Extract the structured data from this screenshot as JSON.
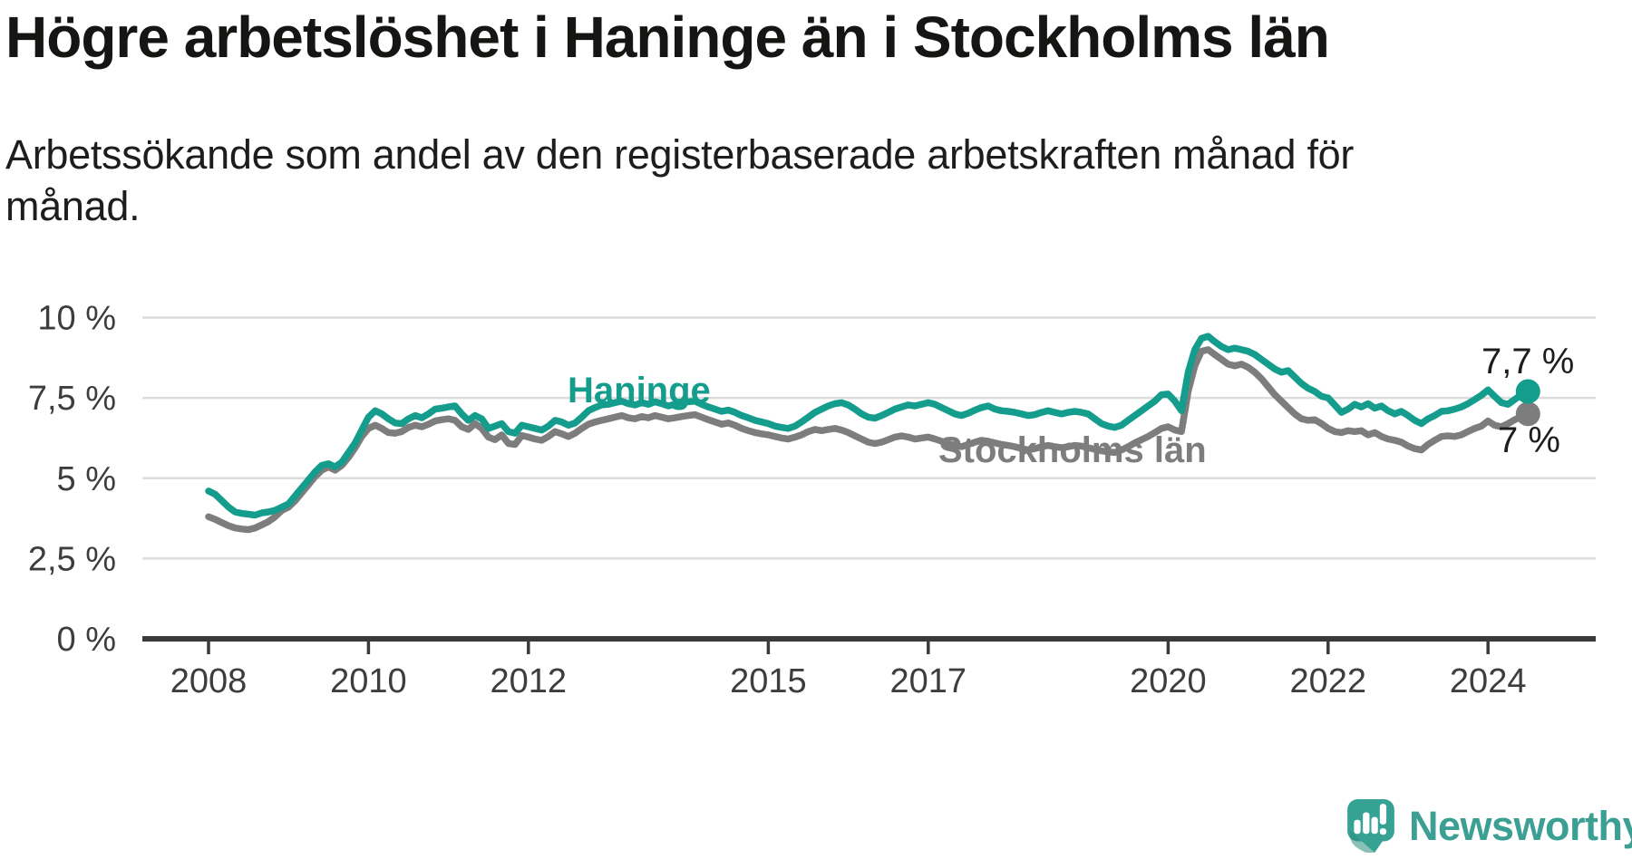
{
  "header": {
    "title": "Högre arbetslöshet i Haninge än i Stockholms län",
    "subtitle": "Arbetssökande som andel av den registerbaserade arbetskraften månad för månad."
  },
  "footer": {
    "brand": "Newsworthy",
    "logo_icon": "speech-bubble-bar-chart-icon"
  },
  "colors": {
    "haninge": "#149c8c",
    "stockholm": "#7d7d7d",
    "grid": "#dcdcdc",
    "axis": "#3a3a3a",
    "tick_label": "#3d3d3d",
    "annotation_text": "#1d1d1b",
    "title_text": "#151513",
    "brand_teal": "#3ba093"
  },
  "chart_data": {
    "type": "line",
    "title": "Högre arbetslöshet i Haninge än i Stockholms län",
    "subtitle": "Arbetssökande som andel av den registerbaserade arbetskraften månad för månad.",
    "unit": "%",
    "frequency": "monthly",
    "x_start": "2008-01",
    "x_end": "2024-07",
    "ylim": [
      0,
      10.5
    ],
    "grid": true,
    "ytick_values": [
      0,
      2.5,
      5,
      7.5,
      10
    ],
    "ytick_labels": [
      "0 %",
      "2,5 %",
      "5 %",
      "7,5 %",
      "10 %"
    ],
    "xtick_years": [
      2008,
      2010,
      2012,
      2015,
      2017,
      2020,
      2022,
      2024
    ],
    "xtick_labels": [
      "2008",
      "2010",
      "2012",
      "2015",
      "2017",
      "2020",
      "2022",
      "2024"
    ],
    "series": [
      {
        "key": "stockholm",
        "name": "Stockholms län",
        "color_key": "stockholm",
        "end_label": "7 %",
        "end_value": 7.0,
        "values": [
          3.8,
          3.72,
          3.62,
          3.52,
          3.45,
          3.42,
          3.4,
          3.45,
          3.55,
          3.65,
          3.8,
          4.0,
          4.1,
          4.3,
          4.55,
          4.8,
          5.05,
          5.25,
          5.35,
          5.25,
          5.4,
          5.65,
          5.95,
          6.3,
          6.55,
          6.65,
          6.55,
          6.42,
          6.4,
          6.45,
          6.58,
          6.65,
          6.6,
          6.68,
          6.78,
          6.82,
          6.85,
          6.8,
          6.6,
          6.52,
          6.7,
          6.55,
          6.28,
          6.2,
          6.35,
          6.08,
          6.05,
          6.33,
          6.28,
          6.22,
          6.18,
          6.3,
          6.45,
          6.38,
          6.3,
          6.4,
          6.55,
          6.68,
          6.75,
          6.8,
          6.85,
          6.9,
          6.95,
          6.88,
          6.85,
          6.92,
          6.88,
          6.95,
          6.9,
          6.85,
          6.88,
          6.92,
          6.95,
          6.98,
          6.9,
          6.82,
          6.75,
          6.68,
          6.72,
          6.65,
          6.55,
          6.48,
          6.42,
          6.38,
          6.35,
          6.3,
          6.25,
          6.22,
          6.28,
          6.35,
          6.45,
          6.52,
          6.48,
          6.52,
          6.55,
          6.5,
          6.42,
          6.32,
          6.22,
          6.12,
          6.08,
          6.12,
          6.2,
          6.28,
          6.32,
          6.28,
          6.22,
          6.25,
          6.28,
          6.22,
          6.15,
          6.08,
          6.02,
          5.98,
          6.05,
          6.12,
          6.18,
          6.15,
          6.1,
          6.05,
          6.02,
          5.98,
          5.92,
          5.88,
          5.92,
          5.98,
          6.02,
          5.98,
          5.95,
          5.98,
          6.02,
          6.0,
          5.95,
          5.9,
          5.85,
          5.82,
          5.8,
          5.88,
          5.98,
          6.1,
          6.2,
          6.3,
          6.42,
          6.55,
          6.6,
          6.5,
          6.45,
          7.7,
          8.5,
          8.95,
          9.0,
          8.85,
          8.7,
          8.55,
          8.5,
          8.55,
          8.45,
          8.3,
          8.1,
          7.85,
          7.6,
          7.4,
          7.2,
          7.0,
          6.85,
          6.8,
          6.82,
          6.7,
          6.55,
          6.45,
          6.42,
          6.48,
          6.45,
          6.48,
          6.35,
          6.42,
          6.3,
          6.22,
          6.18,
          6.12,
          6.0,
          5.92,
          5.88,
          6.05,
          6.18,
          6.3,
          6.32,
          6.3,
          6.35,
          6.45,
          6.55,
          6.62,
          6.78,
          6.65,
          6.6,
          6.7,
          6.82,
          6.92,
          7.0
        ]
      },
      {
        "key": "haninge",
        "name": "Haninge",
        "color_key": "haninge",
        "end_label": "7,7 %",
        "end_value": 7.7,
        "values": [
          4.6,
          4.5,
          4.3,
          4.1,
          3.95,
          3.9,
          3.88,
          3.85,
          3.92,
          3.95,
          4.0,
          4.1,
          4.2,
          4.45,
          4.7,
          4.95,
          5.2,
          5.4,
          5.45,
          5.35,
          5.5,
          5.8,
          6.1,
          6.5,
          6.9,
          7.1,
          7.0,
          6.85,
          6.72,
          6.7,
          6.85,
          6.95,
          6.88,
          7.0,
          7.15,
          7.18,
          7.22,
          7.25,
          7.0,
          6.8,
          6.95,
          6.85,
          6.55,
          6.62,
          6.7,
          6.45,
          6.4,
          6.65,
          6.6,
          6.55,
          6.5,
          6.62,
          6.8,
          6.75,
          6.65,
          6.72,
          6.9,
          7.1,
          7.2,
          7.28,
          7.3,
          7.35,
          7.4,
          7.32,
          7.28,
          7.35,
          7.3,
          7.38,
          7.32,
          7.25,
          7.3,
          7.35,
          7.38,
          7.4,
          7.3,
          7.22,
          7.15,
          7.08,
          7.12,
          7.05,
          6.95,
          6.88,
          6.8,
          6.75,
          6.7,
          6.62,
          6.58,
          6.55,
          6.62,
          6.75,
          6.9,
          7.05,
          7.15,
          7.25,
          7.32,
          7.35,
          7.28,
          7.15,
          7.0,
          6.9,
          6.87,
          6.95,
          7.05,
          7.15,
          7.22,
          7.28,
          7.25,
          7.3,
          7.35,
          7.3,
          7.2,
          7.1,
          7.0,
          6.95,
          7.02,
          7.12,
          7.2,
          7.25,
          7.15,
          7.1,
          7.08,
          7.05,
          7.0,
          6.95,
          6.98,
          7.05,
          7.1,
          7.05,
          7.0,
          7.05,
          7.08,
          7.05,
          7.0,
          6.85,
          6.7,
          6.62,
          6.58,
          6.65,
          6.8,
          6.95,
          7.1,
          7.25,
          7.4,
          7.6,
          7.62,
          7.4,
          7.1,
          8.3,
          9.0,
          9.35,
          9.42,
          9.25,
          9.1,
          9.0,
          9.05,
          9.0,
          8.95,
          8.85,
          8.7,
          8.55,
          8.4,
          8.3,
          8.35,
          8.15,
          7.95,
          7.8,
          7.7,
          7.55,
          7.5,
          7.28,
          7.05,
          7.15,
          7.3,
          7.22,
          7.32,
          7.18,
          7.25,
          7.1,
          7.0,
          7.08,
          6.95,
          6.8,
          6.7,
          6.85,
          6.95,
          7.08,
          7.1,
          7.15,
          7.22,
          7.32,
          7.45,
          7.58,
          7.75,
          7.55,
          7.35,
          7.3,
          7.45,
          7.6,
          7.7
        ]
      }
    ]
  }
}
